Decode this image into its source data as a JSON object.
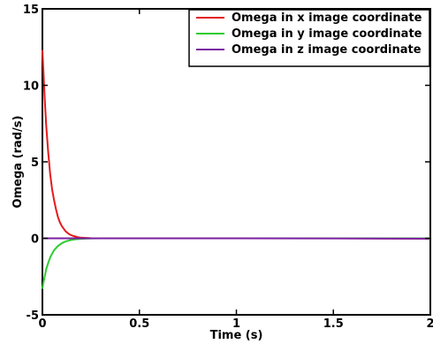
{
  "chart_data": {
    "type": "line",
    "title": "",
    "xlabel": "Time (s)",
    "ylabel": "Omega (rad/s)",
    "xlim": [
      0,
      2
    ],
    "ylim": [
      -5,
      15
    ],
    "xticks": [
      0,
      0.5,
      1,
      1.5,
      2
    ],
    "xtick_labels": [
      "0",
      "0.5",
      "1",
      "1.5",
      "2"
    ],
    "yticks": [
      -5,
      0,
      5,
      10,
      15
    ],
    "ytick_labels": [
      "-5",
      "0",
      "5",
      "10",
      "15"
    ],
    "grid": false,
    "legend_position": "top-right",
    "series": [
      {
        "name": "Omega in x image coordinate",
        "color": "#e41a1c",
        "x": [
          0,
          0.005,
          0.01,
          0.015,
          0.02,
          0.03,
          0.04,
          0.05,
          0.06,
          0.07,
          0.08,
          0.09,
          0.1,
          0.12,
          0.14,
          0.16,
          0.18,
          0.2,
          0.25,
          0.3,
          0.5,
          1.0,
          1.5,
          2.0
        ],
        "y": [
          12.3,
          11.0,
          9.6,
          8.4,
          7.3,
          5.6,
          4.2,
          3.2,
          2.5,
          1.9,
          1.4,
          1.05,
          0.8,
          0.45,
          0.25,
          0.15,
          0.08,
          0.04,
          0.01,
          0,
          0,
          0,
          0,
          -0.02
        ]
      },
      {
        "name": "Omega in y image coordinate",
        "color": "#2ecc2e",
        "x": [
          0,
          0.005,
          0.01,
          0.02,
          0.03,
          0.04,
          0.05,
          0.06,
          0.08,
          0.1,
          0.12,
          0.14,
          0.16,
          0.18,
          0.2,
          0.25,
          0.3,
          0.5,
          1.0,
          1.5,
          2.0
        ],
        "y": [
          -3.3,
          -2.9,
          -2.6,
          -2.0,
          -1.6,
          -1.25,
          -1.0,
          -0.78,
          -0.5,
          -0.32,
          -0.2,
          -0.13,
          -0.08,
          -0.05,
          -0.03,
          -0.01,
          0,
          0,
          0,
          0,
          0
        ]
      },
      {
        "name": "Omega in z image coordinate",
        "color": "#7b1fa2",
        "x": [
          0,
          0.05,
          0.1,
          0.2,
          0.3,
          0.5,
          1.0,
          1.5,
          2.0
        ],
        "y": [
          0.0,
          0.0,
          0.0,
          0.0,
          0.0,
          0.0,
          0.0,
          -0.01,
          -0.02
        ]
      }
    ]
  }
}
